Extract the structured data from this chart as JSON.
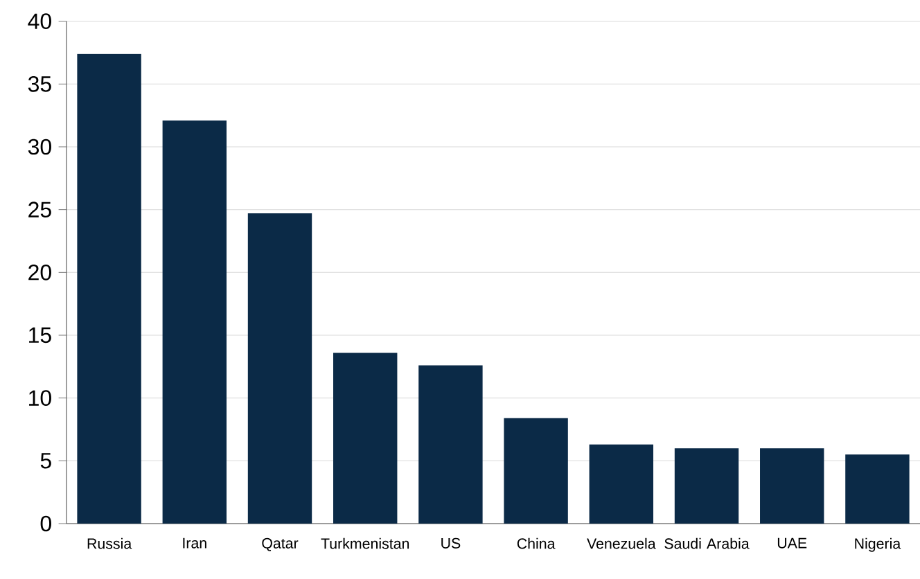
{
  "chart_data": {
    "type": "bar",
    "categories": [
      "Russia",
      "Iran",
      "Qatar",
      "Turkmenistan",
      "US",
      "China",
      "Venezuela",
      "Saudi Arabia",
      "UAE",
      "Nigeria"
    ],
    "values": [
      37.4,
      32.1,
      24.7,
      13.6,
      12.6,
      8.4,
      6.3,
      6.0,
      6.0,
      5.5
    ],
    "color": "#0b2a47",
    "ylim": [
      0,
      40
    ],
    "yticks": [
      0,
      5,
      10,
      15,
      20,
      25,
      30,
      35,
      40
    ],
    "grid": "y"
  }
}
